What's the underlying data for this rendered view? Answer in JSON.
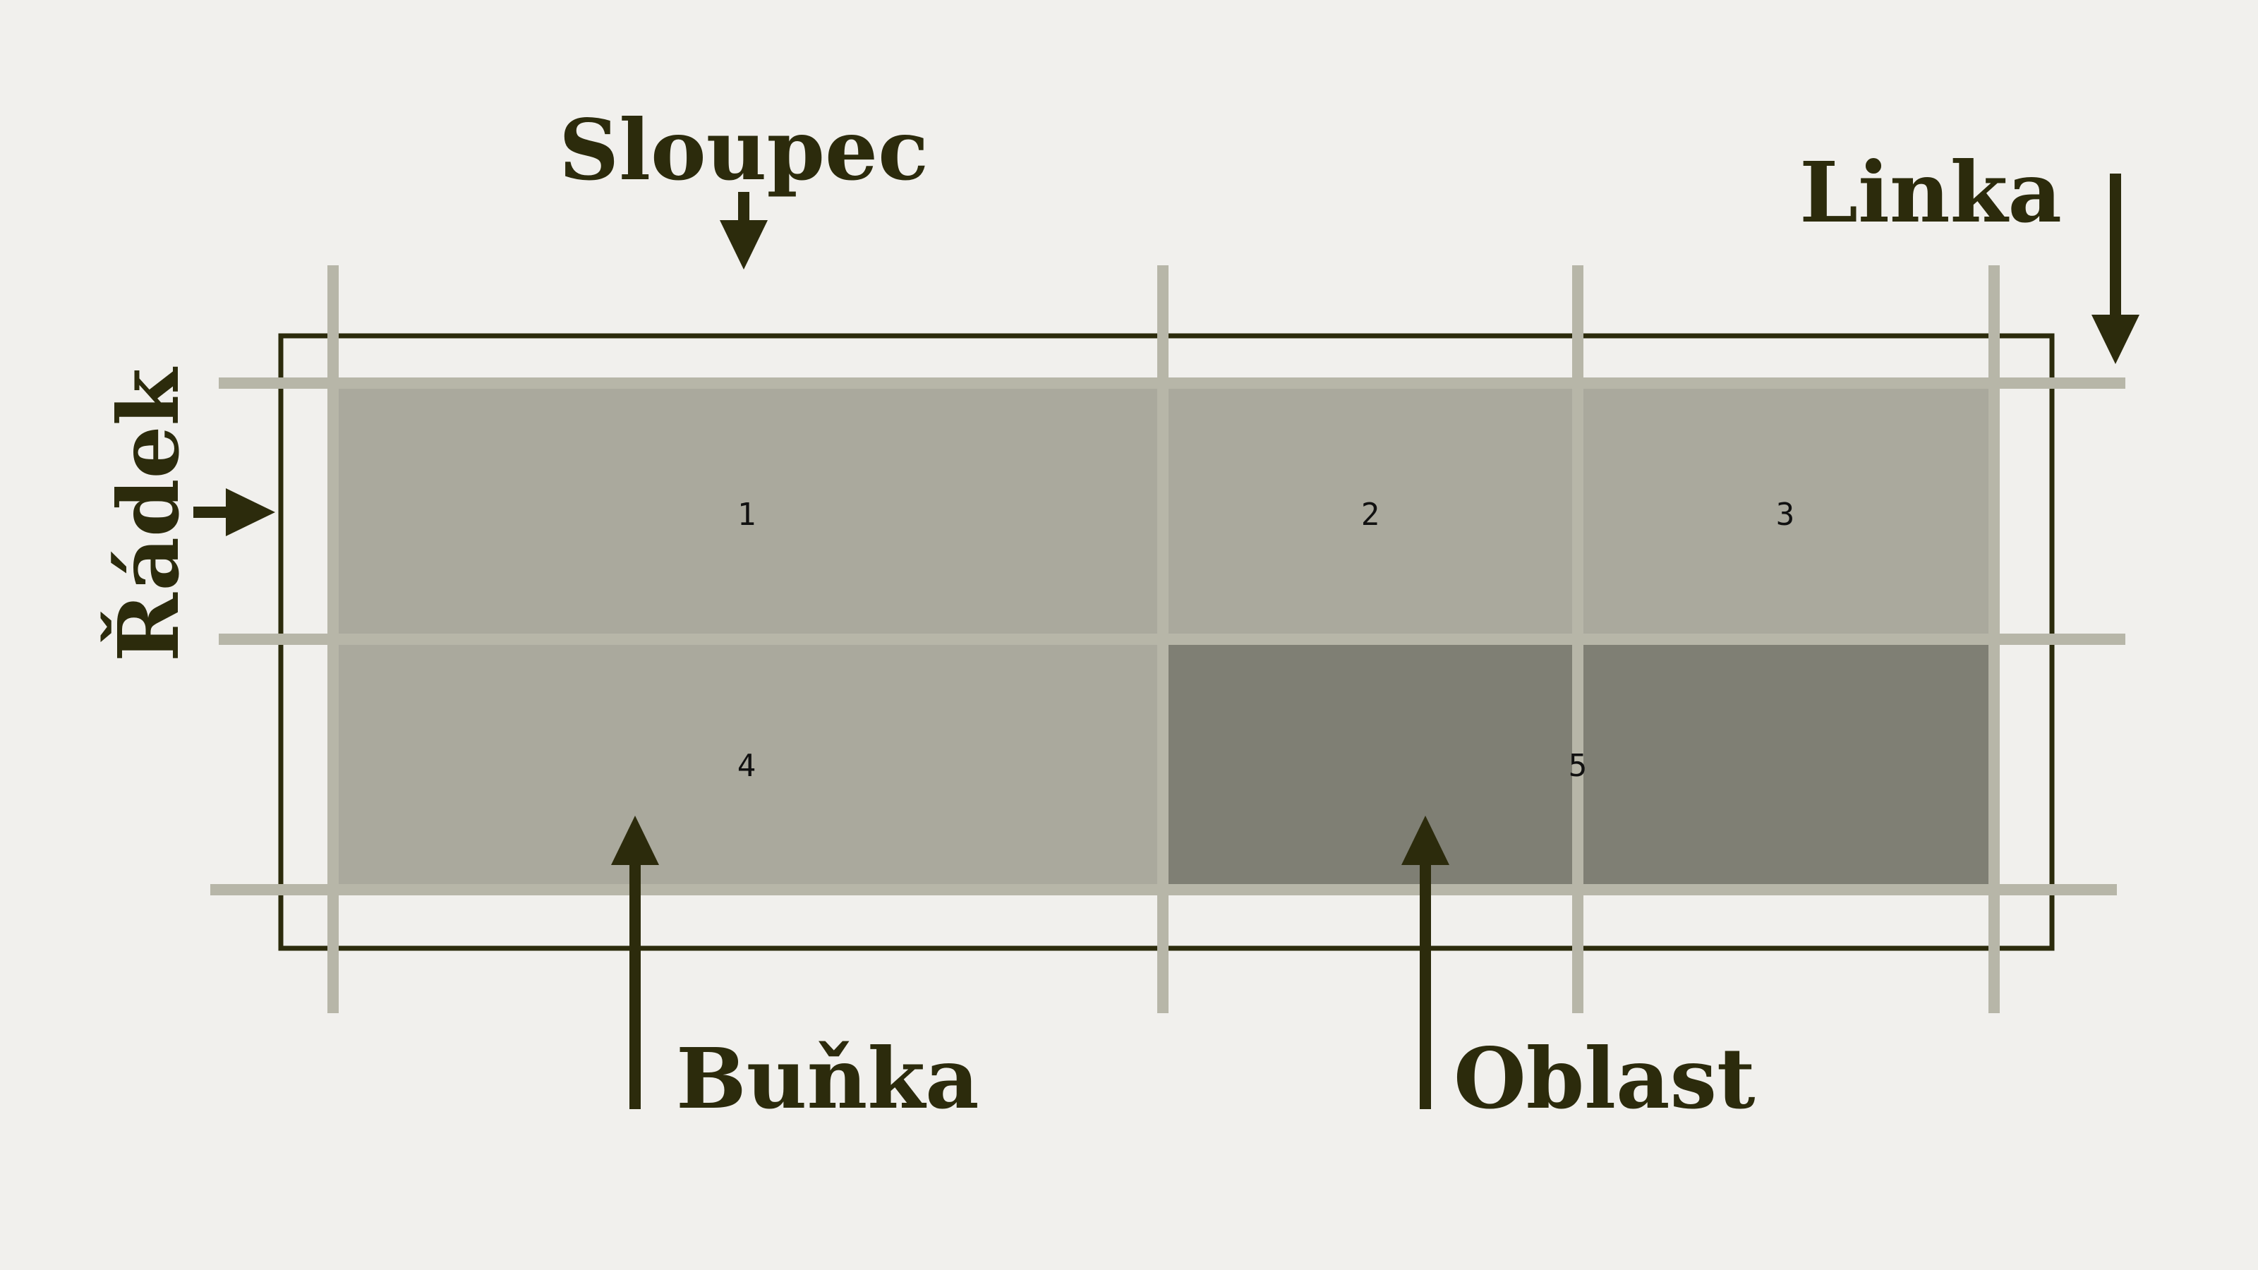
{
  "labels": {
    "column": "Sloupec",
    "line": "Linka",
    "row": "Řádek",
    "cell": "Buňka",
    "area": "Oblast"
  },
  "cells": {
    "c1": "1",
    "c2": "2",
    "c3": "3",
    "c4": "4",
    "c5": "5"
  },
  "colors": {
    "text": "#2c2b0c",
    "background": "#f1f0ed",
    "cell_fill": "#aaa99d",
    "area_fill": "#7f7f74",
    "grid_line": "#b7b6a8"
  }
}
